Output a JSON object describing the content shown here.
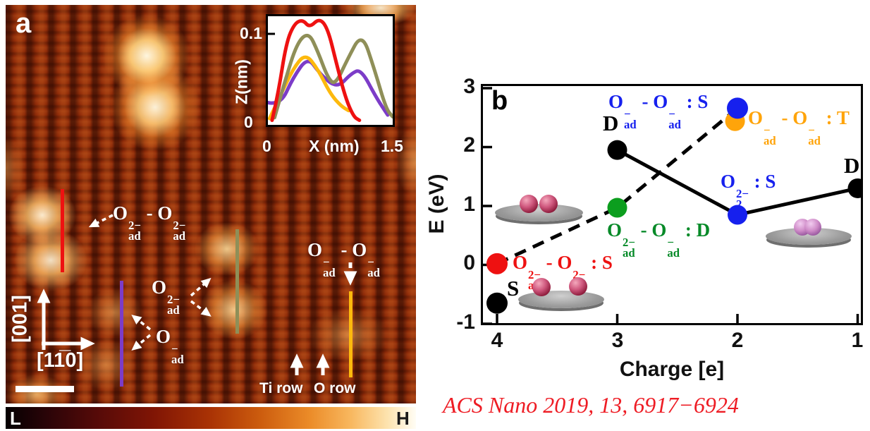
{
  "panel_a": {
    "label": "a",
    "annotations": {
      "o2ad_pair": "O_{ad}^{2−} - O_{ad}^{2−}",
      "o2ad": "O_{ad}^{2−}",
      "oad": "O_{ad}^{−}",
      "oad_pair": "O_{ad}^{−} - O_{ad}^{−}",
      "ti_row": "Ti row",
      "o_row": "O row",
      "axis_vertical": "[001]",
      "axis_horizontal": "[11̅0]"
    },
    "profile_lines": [
      {
        "id": "red",
        "color": "#ee1111"
      },
      {
        "id": "purple",
        "color": "#7c3cc8"
      },
      {
        "id": "olive",
        "color": "#8f8f58"
      },
      {
        "id": "yellow",
        "color": "#fdb90d"
      }
    ],
    "inset": {
      "ylabel": "Z(nm)",
      "xlabel": "X (nm)",
      "ytick_top": "0.1",
      "ytick_bottom": "0",
      "xtick_left": "0",
      "xtick_right": "1.5"
    },
    "colorbar": {
      "low_label": "L",
      "high_label": "H"
    }
  },
  "panel_b": {
    "label": "b",
    "ylabel": "E (eV)",
    "xlabel": "Charge [e]",
    "ytick_labels": [
      "3",
      "2",
      "1",
      "0",
      "-1"
    ],
    "xtick_labels": [
      "4",
      "3",
      "2",
      "1"
    ],
    "point_labels": {
      "blue_s": {
        "text": "O_{ad}^{−} - O_{ad}^{−} : S",
        "color": "#1620ee"
      },
      "orange_t": {
        "text": "O_{ad}^{−} - O_{ad}^{−} : T",
        "color": "#ffa40a"
      },
      "o2_s": {
        "text": "O_{2}^{2−} : S",
        "color": "#1620ee"
      },
      "green_d": {
        "text": "O_{ad}^{2−} - O_{ad}^{−} : D",
        "color": "#068a28"
      },
      "red_s": {
        "text": "O_{ad}^{2−} - O_{ad}^{2−} : S",
        "color": "#ee1111"
      },
      "d_left": {
        "text": "D",
        "color": "#000000"
      },
      "d_right": {
        "text": "D",
        "color": "#000000"
      },
      "s_bottom": {
        "text": "S",
        "color": "#000000"
      }
    }
  },
  "citation": {
    "text": "ACS Nano 2019, 13, 6917−6924",
    "color": "#ee1c24"
  },
  "chart_data": [
    {
      "type": "scatter",
      "panel": "b",
      "xlabel": "Charge [e]",
      "ylabel": "E (eV)",
      "xlim": [
        4.15,
        1.0
      ],
      "ylim": [
        -1,
        3
      ],
      "x_axis_reversed": true,
      "xticks": [
        4,
        3,
        2,
        1
      ],
      "yticks": [
        3,
        2,
        1,
        0,
        -1
      ],
      "points": [
        {
          "id": "s-singlet",
          "x": 4,
          "y": -0.65,
          "color": "#000000",
          "r": 15,
          "label": "S"
        },
        {
          "id": "red-o2ad-pair-s",
          "x": 4,
          "y": 0.02,
          "color": "#ee1111",
          "r": 15,
          "label": "O_{ad}^{2−} - O_{ad}^{2−} : S"
        },
        {
          "id": "d-doublet-left",
          "x": 3,
          "y": 1.95,
          "color": "#000000",
          "r": 14,
          "label": "D"
        },
        {
          "id": "green-mixed-d",
          "x": 3,
          "y": 0.97,
          "color": "#0c9e1e",
          "r": 14,
          "label": "O_{ad}^{2−} - O_{ad}^{−} : D"
        },
        {
          "id": "orange-oad-pair-t",
          "x": 2.02,
          "y": 2.44,
          "color": "#ffa40a",
          "r": 14,
          "label": "O_{ad}^{−} - O_{ad}^{−} : T"
        },
        {
          "id": "blue-oad-pair-s",
          "x": 2,
          "y": 2.66,
          "color": "#1620ee",
          "r": 15,
          "label": "O_{ad}^{−} - O_{ad}^{−} : S"
        },
        {
          "id": "blue-peroxo-s",
          "x": 2,
          "y": 0.85,
          "color": "#1620ee",
          "r": 14,
          "label": "O_{2}^{2−} : S"
        },
        {
          "id": "d-doublet-right",
          "x": 1,
          "y": 1.3,
          "color": "#000000",
          "r": 14,
          "label": "D"
        }
      ],
      "lines": [
        {
          "style": "solid",
          "points": [
            [
              3,
              1.95
            ],
            [
              2,
              0.85
            ],
            [
              1,
              1.3
            ]
          ]
        },
        {
          "style": "dashed",
          "points": [
            [
              4,
              0.02
            ],
            [
              3,
              0.97
            ],
            [
              2,
              2.66
            ]
          ]
        }
      ]
    },
    {
      "type": "line",
      "panel": "a-inset",
      "xlabel": "X (nm)",
      "ylabel": "Z(nm)",
      "xlim": [
        0,
        1.5
      ],
      "ylim": [
        0,
        0.123
      ],
      "xticks": [
        0,
        1.5
      ],
      "yticks": [
        0,
        0.1
      ],
      "series": [
        {
          "name": "purple profile",
          "color": "#7c3cc8",
          "points": [
            [
              0,
              0.022
            ],
            [
              0.15,
              0.019
            ],
            [
              0.3,
              0.05
            ],
            [
              0.48,
              0.074
            ],
            [
              0.62,
              0.055
            ],
            [
              0.83,
              0.038
            ],
            [
              1.0,
              0.055
            ],
            [
              1.12,
              0.06
            ],
            [
              1.3,
              0.028
            ],
            [
              1.44,
              0.008
            ]
          ]
        },
        {
          "name": "yellow profile",
          "color": "#fdb90d",
          "points": [
            [
              0.02,
              0.004
            ],
            [
              0.15,
              0.03
            ],
            [
              0.3,
              0.06
            ],
            [
              0.45,
              0.078
            ],
            [
              0.6,
              0.06
            ],
            [
              0.75,
              0.032
            ],
            [
              0.88,
              0.018
            ],
            [
              0.97,
              0.013
            ]
          ]
        },
        {
          "name": "olive profile",
          "color": "#8f8f58",
          "points": [
            [
              0.08,
              0.005
            ],
            [
              0.2,
              0.045
            ],
            [
              0.35,
              0.09
            ],
            [
              0.49,
              0.102
            ],
            [
              0.6,
              0.08
            ],
            [
              0.72,
              0.05
            ],
            [
              0.81,
              0.042
            ],
            [
              0.95,
              0.07
            ],
            [
              1.13,
              0.102
            ],
            [
              1.28,
              0.06
            ],
            [
              1.42,
              0.015
            ],
            [
              1.5,
              0.006
            ]
          ]
        },
        {
          "name": "red profile",
          "color": "#ee1111",
          "points": [
            [
              0.05,
              0.002
            ],
            [
              0.12,
              0.03
            ],
            [
              0.22,
              0.09
            ],
            [
              0.32,
              0.112
            ],
            [
              0.42,
              0.116
            ],
            [
              0.5,
              0.107
            ],
            [
              0.62,
              0.118
            ],
            [
              0.72,
              0.106
            ],
            [
              0.82,
              0.068
            ],
            [
              0.93,
              0.028
            ],
            [
              1.03,
              0.006
            ],
            [
              1.1,
              0.002
            ]
          ]
        }
      ]
    }
  ]
}
